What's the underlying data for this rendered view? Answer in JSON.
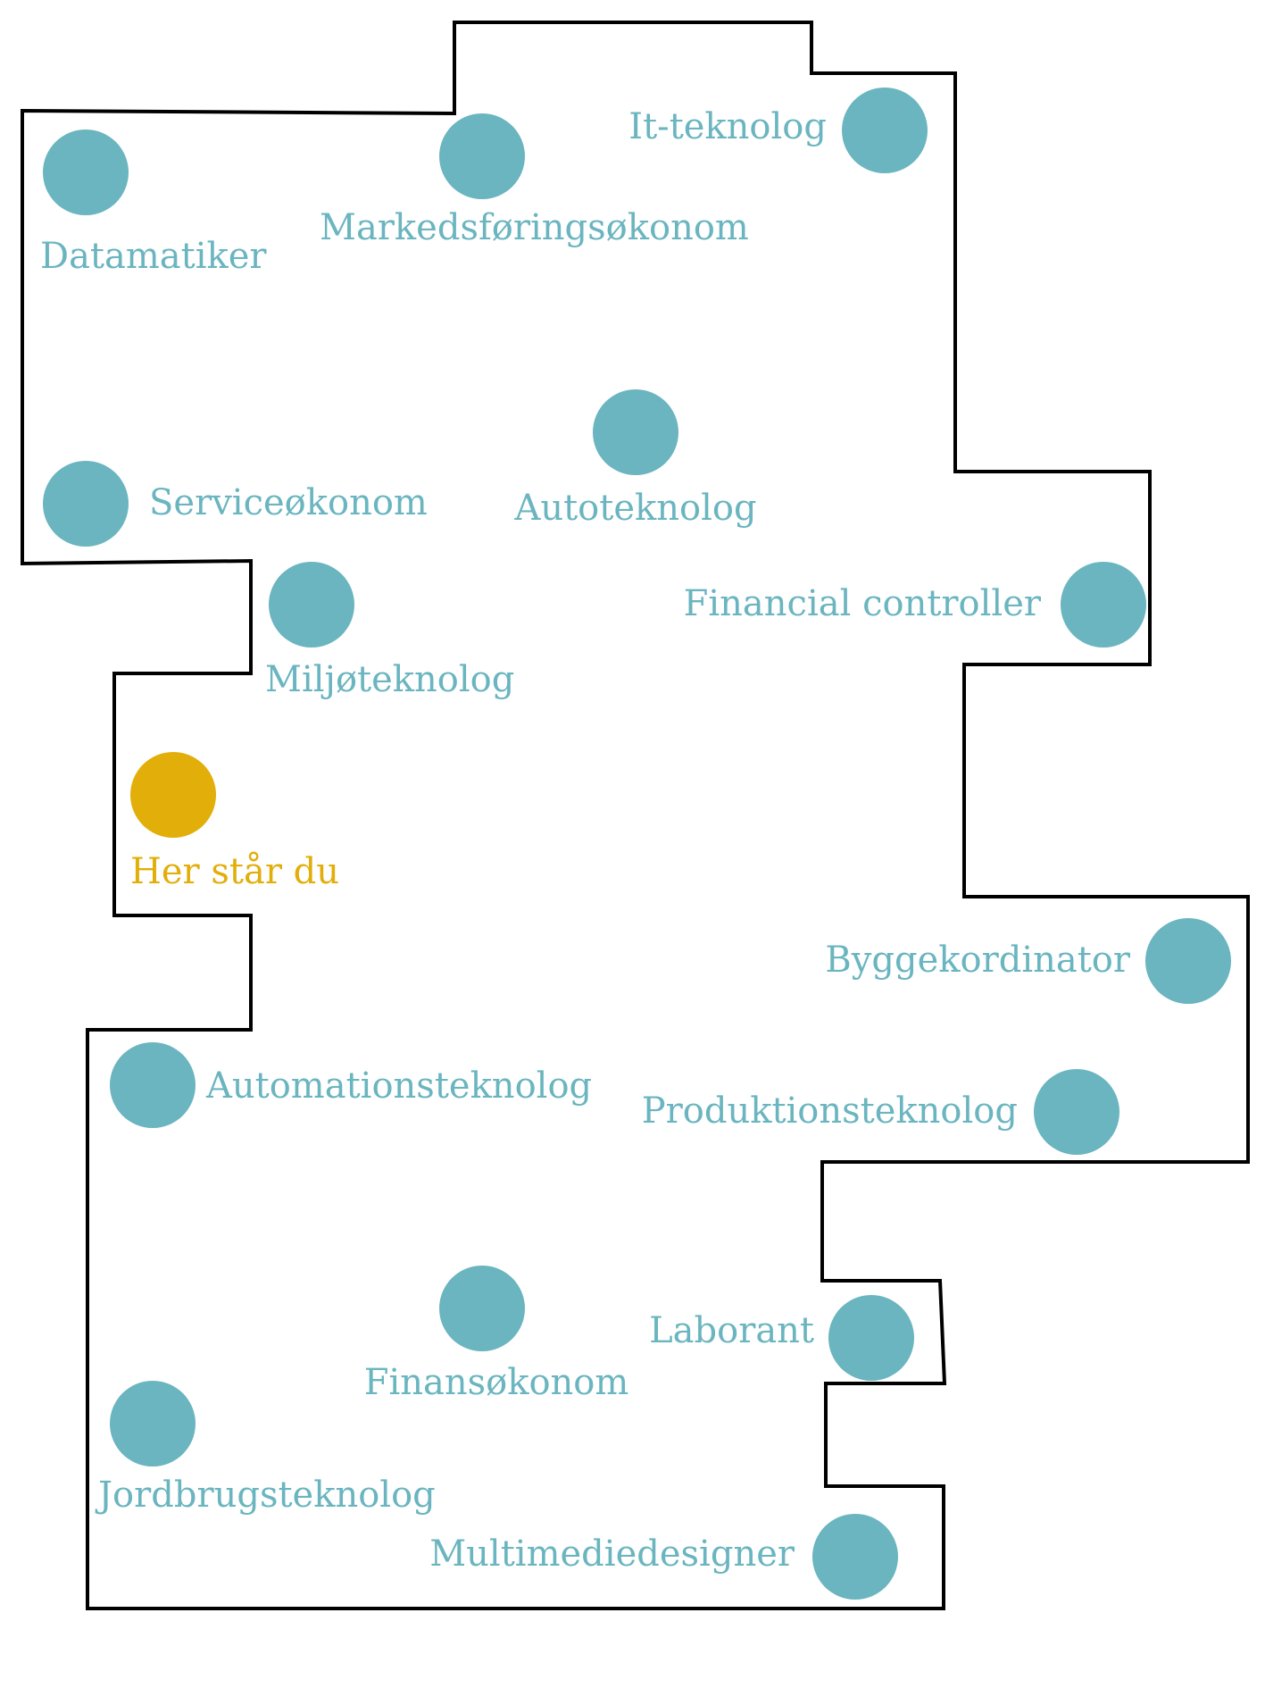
{
  "colors": {
    "station": "#6ab5bf",
    "current": "#e2ae0a",
    "outline": "#000000",
    "background": "#ffffff"
  },
  "current_position": {
    "label": "Her står du",
    "icon": "you-are-here-marker"
  },
  "stations": [
    {
      "id": "datamatiker",
      "label": "Datamatiker"
    },
    {
      "id": "markedsforingsokonom",
      "label": "Markedsføringsøkonom"
    },
    {
      "id": "it-teknolog",
      "label": "It-teknolog"
    },
    {
      "id": "serviceokonom",
      "label": "Serviceøkonom"
    },
    {
      "id": "autoteknolog",
      "label": "Autoteknolog"
    },
    {
      "id": "miljoteknolog",
      "label": "Miljøteknolog"
    },
    {
      "id": "financial-controller",
      "label": "Financial controller"
    },
    {
      "id": "byggekordinator",
      "label": "Byggekordinator"
    },
    {
      "id": "automationsteknolog",
      "label": "Automationsteknolog"
    },
    {
      "id": "produktionsteknolog",
      "label": "Produktionsteknolog"
    },
    {
      "id": "finansokonom",
      "label": "Finansøkonom"
    },
    {
      "id": "laborant",
      "label": "Laborant"
    },
    {
      "id": "jordbrugsteknolog",
      "label": "Jordbrugsteknolog"
    },
    {
      "id": "multimediedesigner",
      "label": "Multimediedesigner"
    }
  ]
}
